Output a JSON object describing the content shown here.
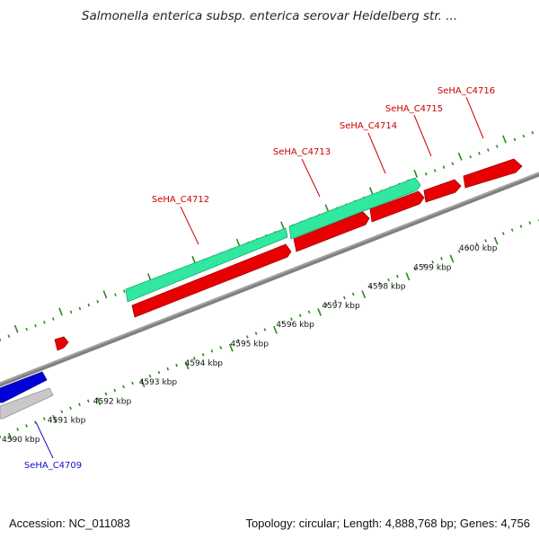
{
  "title": "Salmonella enterica subsp. enterica serovar Heidelberg str. ...",
  "footer": {
    "accession": "Accession: NC_011083",
    "summary": "Topology: circular; Length: 4,888,768 bp; Genes: 4,756"
  },
  "colors": {
    "forward_cds": "#e80000",
    "reverse_cds": "#0000d8",
    "rna": "#30e8a0",
    "pseudo": "#c8c8c8",
    "backbone": "#808080",
    "tick": "#2a8a1a",
    "forward_label": "#cc0000",
    "reverse_label": "#1010c0"
  },
  "scale": {
    "ticks": [
      {
        "label": "4590 kbp"
      },
      {
        "label": "4591 kbp"
      },
      {
        "label": "4592 kbp"
      },
      {
        "label": "4593 kbp"
      },
      {
        "label": "4594 kbp"
      },
      {
        "label": "4595 kbp"
      },
      {
        "label": "4596 kbp"
      },
      {
        "label": "4597 kbp"
      },
      {
        "label": "4598 kbp"
      },
      {
        "label": "4599 kbp"
      },
      {
        "label": "4600 kbp"
      }
    ]
  },
  "features": {
    "labels": {
      "g4709": "SeHA_C4709",
      "g4712": "SeHA_C4712",
      "g4713": "SeHA_C4713",
      "g4714": "SeHA_C4714",
      "g4715": "SeHA_C4715",
      "g4716": "SeHA_C4716"
    }
  }
}
